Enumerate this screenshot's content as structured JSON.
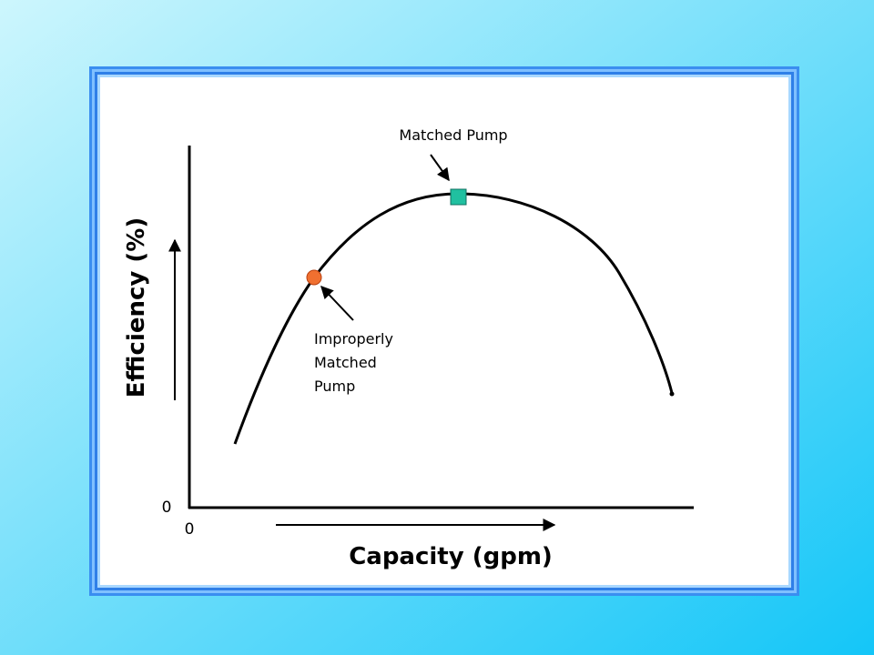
{
  "diagram": {
    "y_axis_label": "Efficiency (%)",
    "x_axis_label": "Capacity (gpm)",
    "y_origin_label": "0",
    "x_origin_label": "0",
    "annotations": [
      {
        "lines": [
          "Matched Pump"
        ]
      },
      {
        "lines": [
          "Improperly",
          "Matched",
          "Pump"
        ]
      }
    ]
  }
}
